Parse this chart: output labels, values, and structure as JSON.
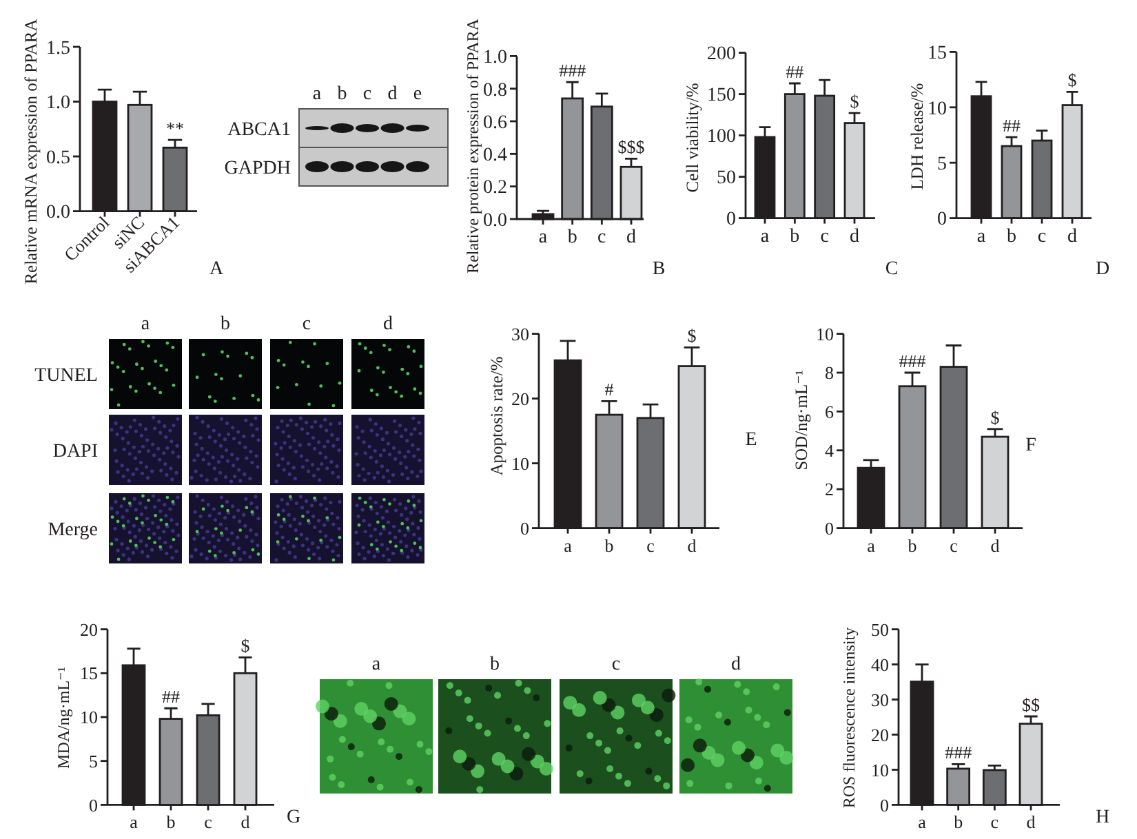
{
  "chart_data": [
    {
      "type": "bar",
      "ylabel": "Relative mRNA expression of PPARA",
      "categories": [
        "Control",
        "siNC",
        "siABCA1"
      ],
      "values": [
        1.0,
        0.97,
        0.58
      ],
      "colors": [
        "#231f20",
        "#a7a9ac",
        "#6d6e71"
      ],
      "errors": [
        [
          1.0,
          1.11
        ],
        [
          0.97,
          1.09
        ],
        [
          0.58,
          0.65
        ]
      ],
      "ylim": [
        0,
        1.5
      ],
      "yticks": [
        {
          "value": 0,
          "label": "0.0"
        },
        {
          "value": 0.5,
          "label": "0.5"
        },
        {
          "value": 1,
          "label": "1.0"
        },
        {
          "value": 1.5,
          "label": "1.5"
        }
      ],
      "annotations": [
        {
          "text": "**",
          "x": "siABCA1",
          "y": 0.58
        },
        "A"
      ]
    },
    {
      "type": "other",
      "categories": [
        "a",
        "b",
        "c",
        "d",
        "e"
      ],
      "y_categories": [
        "ABCA1",
        "GAPDH"
      ]
    },
    {
      "type": "bar",
      "ylabel": "Relative protein expression of PPARA",
      "categories": [
        "a",
        "b",
        "c",
        "d"
      ],
      "values": [
        0.03,
        0.74,
        0.69,
        0.32
      ],
      "colors": [
        "#231f20",
        "#939598",
        "#6d6e71",
        "#d1d3d4"
      ],
      "errors": [
        [
          0.03,
          0.05
        ],
        [
          0.74,
          0.84
        ],
        [
          0.69,
          0.77
        ],
        [
          0.32,
          0.37
        ]
      ],
      "ylim": [
        0,
        1.0
      ],
      "yticks": [
        {
          "value": 0,
          "label": "0.0"
        },
        {
          "value": 0.2,
          "label": "0.2"
        },
        {
          "value": 0.4,
          "label": "0.4"
        },
        {
          "value": 0.6,
          "label": "0.6"
        },
        {
          "value": 0.8,
          "label": "0.8"
        },
        {
          "value": 1,
          "label": "1.0"
        }
      ],
      "annotations": [
        {
          "text": "###",
          "x": "b",
          "y": 0.74
        },
        {
          "text": "$$$",
          "x": "d",
          "y": 0.32
        },
        "B"
      ]
    },
    {
      "type": "bar",
      "ylabel": "Cell viability/%",
      "categories": [
        "a",
        "b",
        "c",
        "d"
      ],
      "values": [
        98,
        150,
        148,
        115
      ],
      "colors": [
        "#231f20",
        "#939598",
        "#6d6e71",
        "#d1d3d4"
      ],
      "errors": [
        [
          98,
          110
        ],
        [
          150,
          163
        ],
        [
          148,
          167
        ],
        [
          115,
          127
        ]
      ],
      "ylim": [
        0,
        200
      ],
      "yticks": [
        0,
        50,
        100,
        150,
        200
      ],
      "annotations": [
        {
          "text": "##",
          "x": "b",
          "y": 150
        },
        {
          "text": "$",
          "x": "d",
          "y": 115
        },
        "C"
      ]
    },
    {
      "type": "bar",
      "ylabel": "LDH release/%",
      "categories": [
        "a",
        "b",
        "c",
        "d"
      ],
      "values": [
        11.0,
        6.5,
        7.0,
        10.2
      ],
      "colors": [
        "#231f20",
        "#939598",
        "#6d6e71",
        "#d1d3d4"
      ],
      "errors": [
        [
          11.0,
          12.3
        ],
        [
          6.5,
          7.3
        ],
        [
          7.0,
          7.9
        ],
        [
          10.2,
          11.4
        ]
      ],
      "ylim": [
        0,
        15
      ],
      "yticks": [
        0,
        5,
        10,
        15
      ],
      "annotations": [
        {
          "text": "##",
          "x": "b",
          "y": 6.5
        },
        {
          "text": "$",
          "x": "d",
          "y": 10.2
        },
        "D"
      ]
    },
    {
      "type": "other",
      "categories": [
        "a",
        "b",
        "c",
        "d"
      ],
      "y_categories": [
        "TUNEL",
        "DAPI",
        "Merge"
      ]
    },
    {
      "type": "bar",
      "ylabel": "Apoptosis rate/%",
      "categories": [
        "a",
        "b",
        "c",
        "d"
      ],
      "values": [
        25.9,
        17.5,
        17.0,
        25.0
      ],
      "colors": [
        "#231f20",
        "#939598",
        "#6d6e71",
        "#d1d3d4"
      ],
      "errors": [
        [
          25.9,
          28.9
        ],
        [
          17.5,
          19.6
        ],
        [
          17.0,
          19.1
        ],
        [
          25.0,
          27.9
        ]
      ],
      "ylim": [
        0,
        30
      ],
      "yticks": [
        0,
        10,
        20,
        30
      ],
      "annotations": [
        {
          "text": "#",
          "x": "b",
          "y": 17.5
        },
        {
          "text": "$",
          "x": "d",
          "y": 25.0
        },
        "E"
      ]
    },
    {
      "type": "bar",
      "ylabel": "SOD/ng·mL⁻¹",
      "categories": [
        "a",
        "b",
        "c",
        "d"
      ],
      "values": [
        3.1,
        7.3,
        8.3,
        4.7
      ],
      "colors": [
        "#231f20",
        "#939598",
        "#6d6e71",
        "#d1d3d4"
      ],
      "errors": [
        [
          3.1,
          3.5
        ],
        [
          7.3,
          8.0
        ],
        [
          8.3,
          9.4
        ],
        [
          4.7,
          5.1
        ]
      ],
      "ylim": [
        0,
        10
      ],
      "yticks": [
        0,
        2,
        4,
        6,
        8,
        10
      ],
      "annotations": [
        {
          "text": "###",
          "x": "b",
          "y": 7.3
        },
        {
          "text": "$",
          "x": "d",
          "y": 4.7
        },
        "F"
      ]
    },
    {
      "type": "bar",
      "ylabel": "MDA/ng·mL⁻¹",
      "categories": [
        "a",
        "b",
        "c",
        "d"
      ],
      "values": [
        15.9,
        9.8,
        10.2,
        15.0
      ],
      "colors": [
        "#231f20",
        "#939598",
        "#6d6e71",
        "#d1d3d4"
      ],
      "errors": [
        [
          15.9,
          17.8
        ],
        [
          9.8,
          11.0
        ],
        [
          10.2,
          11.5
        ],
        [
          15.0,
          16.8
        ]
      ],
      "ylim": [
        0,
        20
      ],
      "yticks": [
        0,
        5,
        10,
        15,
        20
      ],
      "annotations": [
        {
          "text": "##",
          "x": "b",
          "y": 9.8
        },
        {
          "text": "$",
          "x": "d",
          "y": 15.0
        },
        "G"
      ]
    },
    {
      "type": "other",
      "categories": [
        "a",
        "b",
        "c",
        "d"
      ]
    },
    {
      "type": "bar",
      "ylabel": "ROS fluorescence intensity",
      "categories": [
        "a",
        "b",
        "c",
        "d"
      ],
      "values": [
        35.1,
        10.3,
        9.9,
        23.1
      ],
      "colors": [
        "#231f20",
        "#939598",
        "#6d6e71",
        "#d1d3d4"
      ],
      "errors": [
        [
          35.1,
          40.0
        ],
        [
          10.3,
          11.6
        ],
        [
          9.9,
          11.2
        ],
        [
          23.1,
          25.2
        ]
      ],
      "ylim": [
        0,
        50
      ],
      "yticks": [
        0,
        10,
        20,
        30,
        40,
        50
      ],
      "annotations": [
        {
          "text": "###",
          "x": "b",
          "y": 10.3
        },
        {
          "text": "$$",
          "x": "d",
          "y": 23.1
        },
        "H"
      ]
    }
  ]
}
